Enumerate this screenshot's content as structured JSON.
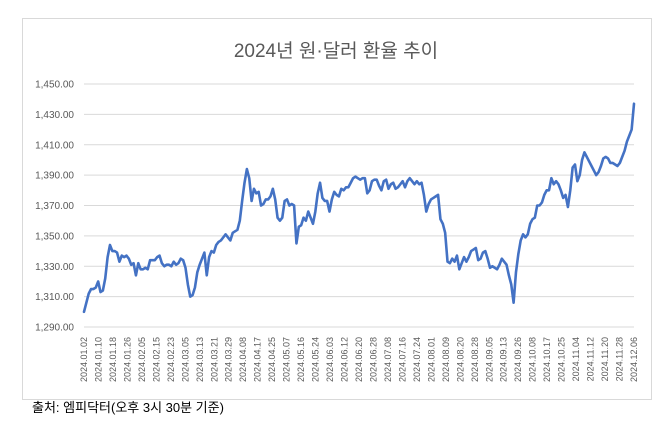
{
  "chart_data": {
    "type": "line",
    "title": "2024년 원·달러 환율 추이",
    "xlabel": "",
    "ylabel": "",
    "ylim": [
      1290,
      1450
    ],
    "yticks": [
      "1,290.00",
      "1,310.00",
      "1,330.00",
      "1,350.00",
      "1,370.00",
      "1,390.00",
      "1,410.00",
      "1,430.00",
      "1,450.00"
    ],
    "xticks": [
      "2024.01.02",
      "2024.01.10",
      "2024.01.18",
      "2024.01.26",
      "2024.02.05",
      "2024.02.15",
      "2024.02.23",
      "2024.03.05",
      "2024.03.13",
      "2024.03.21",
      "2024.03.29",
      "2024.04.08",
      "2024.04.17",
      "2024.04.25",
      "2024.05.07",
      "2024.05.16",
      "2024.05.24",
      "2024.06.03",
      "2024.06.12",
      "2024.06.20",
      "2024.06.28",
      "2024.07.08",
      "2024.07.16",
      "2024.07.24",
      "2024.08.01",
      "2024.08.09",
      "2024.08.20",
      "2024.08.28",
      "2024.09.05",
      "2024.09.13",
      "2024.09.26",
      "2024.10.08",
      "2024.10.17",
      "2024.10.25",
      "2024.11.04",
      "2024.11.12",
      "2024.11.20",
      "2024.11.28",
      "2024.12.06"
    ],
    "grid": true,
    "color": "#4472c4",
    "series": [
      {
        "values": [
          1300,
          1306,
          1312,
          1315,
          1315,
          1316,
          1320,
          1313,
          1314,
          1322,
          1336,
          1344,
          1340,
          1340,
          1339,
          1333,
          1337,
          1336,
          1337,
          1335,
          1331,
          1332,
          1324,
          1332,
          1328,
          1328,
          1329,
          1328,
          1334,
          1334,
          1334,
          1336,
          1337,
          1332,
          1330,
          1331,
          1331,
          1330,
          1333,
          1331,
          1332,
          1335,
          1334,
          1329,
          1318,
          1310,
          1311,
          1316,
          1326,
          1331,
          1335,
          1339,
          1324,
          1336,
          1340,
          1339,
          1344,
          1346,
          1347,
          1349,
          1351,
          1349,
          1347,
          1352,
          1353,
          1354,
          1360,
          1373,
          1385,
          1394,
          1388,
          1373,
          1381,
          1378,
          1379,
          1370,
          1371,
          1374,
          1374,
          1376,
          1381,
          1374,
          1362,
          1360,
          1362,
          1373,
          1374,
          1370,
          1371,
          1370,
          1345,
          1356,
          1357,
          1362,
          1360,
          1366,
          1362,
          1358,
          1366,
          1378,
          1385,
          1375,
          1373,
          1373,
          1366,
          1374,
          1379,
          1377,
          1376,
          1381,
          1380,
          1382,
          1382,
          1385,
          1388,
          1389,
          1388,
          1387,
          1388,
          1388,
          1378,
          1380,
          1386,
          1387,
          1387,
          1383,
          1380,
          1386,
          1387,
          1381,
          1384,
          1385,
          1381,
          1382,
          1384,
          1386,
          1382,
          1386,
          1388,
          1386,
          1384,
          1386,
          1384,
          1385,
          1377,
          1366,
          1371,
          1374,
          1375,
          1376,
          1377,
          1361,
          1358,
          1352,
          1333,
          1332,
          1335,
          1333,
          1337,
          1328,
          1332,
          1336,
          1333,
          1336,
          1340,
          1341,
          1342,
          1334,
          1335,
          1339,
          1340,
          1335,
          1329,
          1330,
          1329,
          1328,
          1331,
          1335,
          1333,
          1331,
          1324,
          1318,
          1306,
          1326,
          1338,
          1347,
          1351,
          1349,
          1351,
          1358,
          1361,
          1362,
          1370,
          1370,
          1372,
          1377,
          1380,
          1380,
          1388,
          1384,
          1386,
          1384,
          1380,
          1375,
          1377,
          1369,
          1380,
          1395,
          1397,
          1386,
          1390,
          1400,
          1405,
          1402,
          1399,
          1396,
          1393,
          1390,
          1392,
          1396,
          1401,
          1402,
          1401,
          1398,
          1398,
          1397,
          1396,
          1398,
          1402,
          1406,
          1412,
          1416,
          1420,
          1437
        ]
      }
    ]
  },
  "source": "출처: 엠피닥터(오후 3시 30분 기준)"
}
